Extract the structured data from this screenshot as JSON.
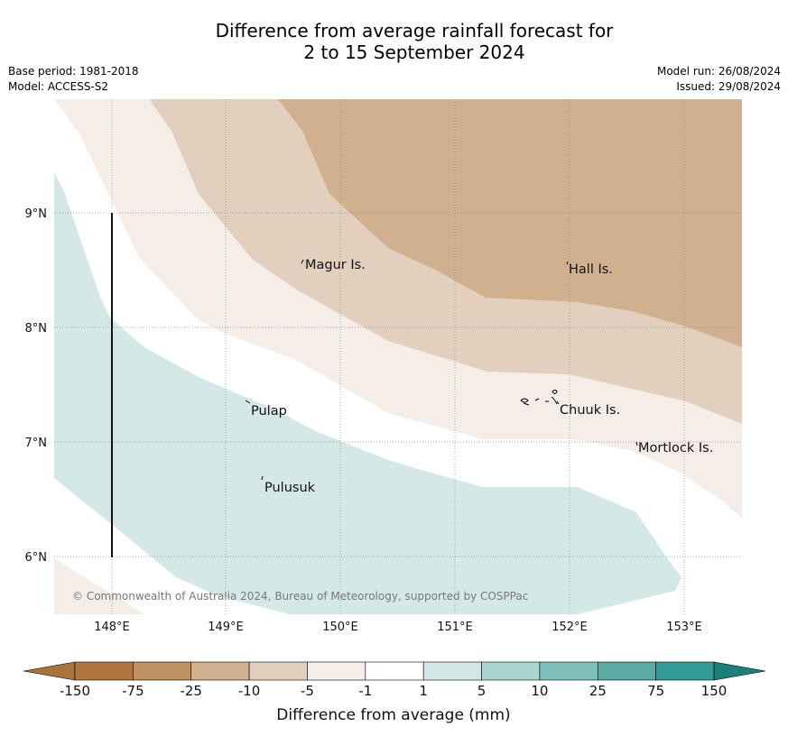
{
  "title": {
    "line1": "Difference from average rainfall forecast for",
    "line2": "2 to 15 September 2024"
  },
  "meta_left": {
    "base_period": "Base period: 1981-2018",
    "model": "Model: ACCESS-S2"
  },
  "meta_right": {
    "model_run": "Model run: 26/08/2024",
    "issued": "Issued: 29/08/2024"
  },
  "axes": {
    "lon_labels": [
      "148°E",
      "149°E",
      "150°E",
      "151°E",
      "152°E",
      "153°E"
    ],
    "lat_labels": [
      "9°N",
      "8°N",
      "7°N",
      "6°N"
    ]
  },
  "places": {
    "magur": "Magur Is.",
    "hall": "Hall Is.",
    "pulap": "Pulap",
    "chuuk": "Chuuk Is.",
    "mortlock": "Mortlock Is.",
    "pulusuk": "Pulusuk"
  },
  "copyright": "© Commonwealth of Australia 2024, Bureau of Meteorology, supported by COSPPac",
  "colorbar": {
    "labels": [
      "-150",
      "-75",
      "-25",
      "-10",
      "-5",
      "-1",
      "1",
      "5",
      "10",
      "25",
      "75",
      "150"
    ],
    "title": "Difference from average (mm)",
    "colors": [
      "#a9733c",
      "#b07642",
      "#c09264",
      "#d1b08f",
      "#e3cfbd",
      "#f5ede7",
      "#ffffff",
      "#d4e9e7",
      "#acd4d1",
      "#7fbfbb",
      "#5aaba6",
      "#339b96",
      "#1e7e79"
    ]
  }
}
